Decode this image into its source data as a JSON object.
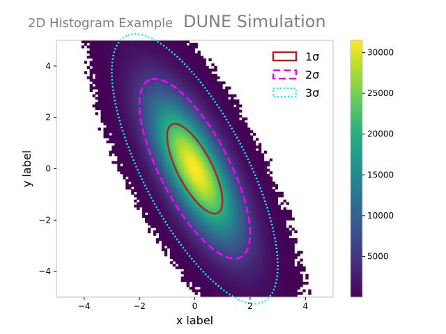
{
  "chart_data": {
    "type": "heatmap",
    "title": "DUNE Simulation",
    "subtitle": "2D Histogram Example",
    "xlabel": "x label",
    "ylabel": "y label",
    "xlim": [
      -5,
      5
    ],
    "ylim": [
      -5,
      5
    ],
    "x_ticks": [
      -4,
      -2,
      0,
      2,
      4
    ],
    "y_ticks": [
      -4,
      -2,
      0,
      2,
      4
    ],
    "x_tick_labels": [
      "−4",
      "−2",
      "0",
      "2",
      "4"
    ],
    "y_tick_labels": [
      "−4",
      "−2",
      "0",
      "2",
      "4"
    ],
    "grid": false,
    "colormap": "viridis",
    "distribution": {
      "mean": [
        0.0,
        0.0
      ],
      "std_x": 1.0,
      "std_y": 1.75,
      "correlation": -0.72,
      "peak_count": 31500
    },
    "colorbar": {
      "range": [
        0,
        31500
      ],
      "ticks": [
        5000,
        10000,
        15000,
        20000,
        25000,
        30000
      ],
      "tick_labels": [
        "5000",
        "10000",
        "15000",
        "20000",
        "25000",
        "30000"
      ]
    },
    "contours": [
      {
        "sigma": 1,
        "label": "1σ",
        "color": "#b22222",
        "style": "solid"
      },
      {
        "sigma": 2,
        "label": "2σ",
        "color": "#ff00ff",
        "style": "dashed"
      },
      {
        "sigma": 3,
        "label": "3σ",
        "color": "#00ffff",
        "style": "dotted"
      }
    ],
    "legend_position": "top-right"
  }
}
